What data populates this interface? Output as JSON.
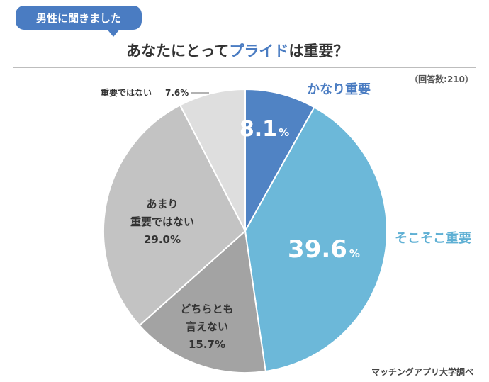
{
  "header": {
    "bubble_text": "男性に聞きました",
    "title_prefix": "あなたにとって",
    "title_highlight": "プライド",
    "title_suffix": "は重要？"
  },
  "meta": {
    "respondents": "（回答数:210）",
    "source": "マッチングアプリ大学調べ"
  },
  "chart_data": {
    "type": "pie",
    "title": "あなたにとってプライドは重要？",
    "total_respondents": 210,
    "slices": [
      {
        "name": "かなり重要",
        "value": 8.1,
        "color": "#5083c4"
      },
      {
        "name": "そこそこ重要",
        "value": 39.6,
        "color": "#6cb8d9"
      },
      {
        "name": "どちらとも言えない",
        "value": 15.7,
        "color": "#a3a3a3"
      },
      {
        "name": "あまり重要ではない",
        "value": 29.0,
        "color": "#c3c3c3"
      },
      {
        "name": "重要ではない",
        "value": 7.6,
        "color": "#dedede"
      }
    ],
    "labels": {
      "s0_name": "かなり重要",
      "s0_value": "8.1",
      "s1_name": "そこそこ重要",
      "s1_value": "39.6",
      "s2_line1": "どちらとも",
      "s2_line2": "言えない",
      "s2_value": "15.7%",
      "s3_line1": "あまり",
      "s3_line2": "重要ではない",
      "s3_value": "29.0%",
      "s4_name": "重要ではない",
      "s4_value": "7.6%",
      "percent_sign": "%"
    }
  }
}
